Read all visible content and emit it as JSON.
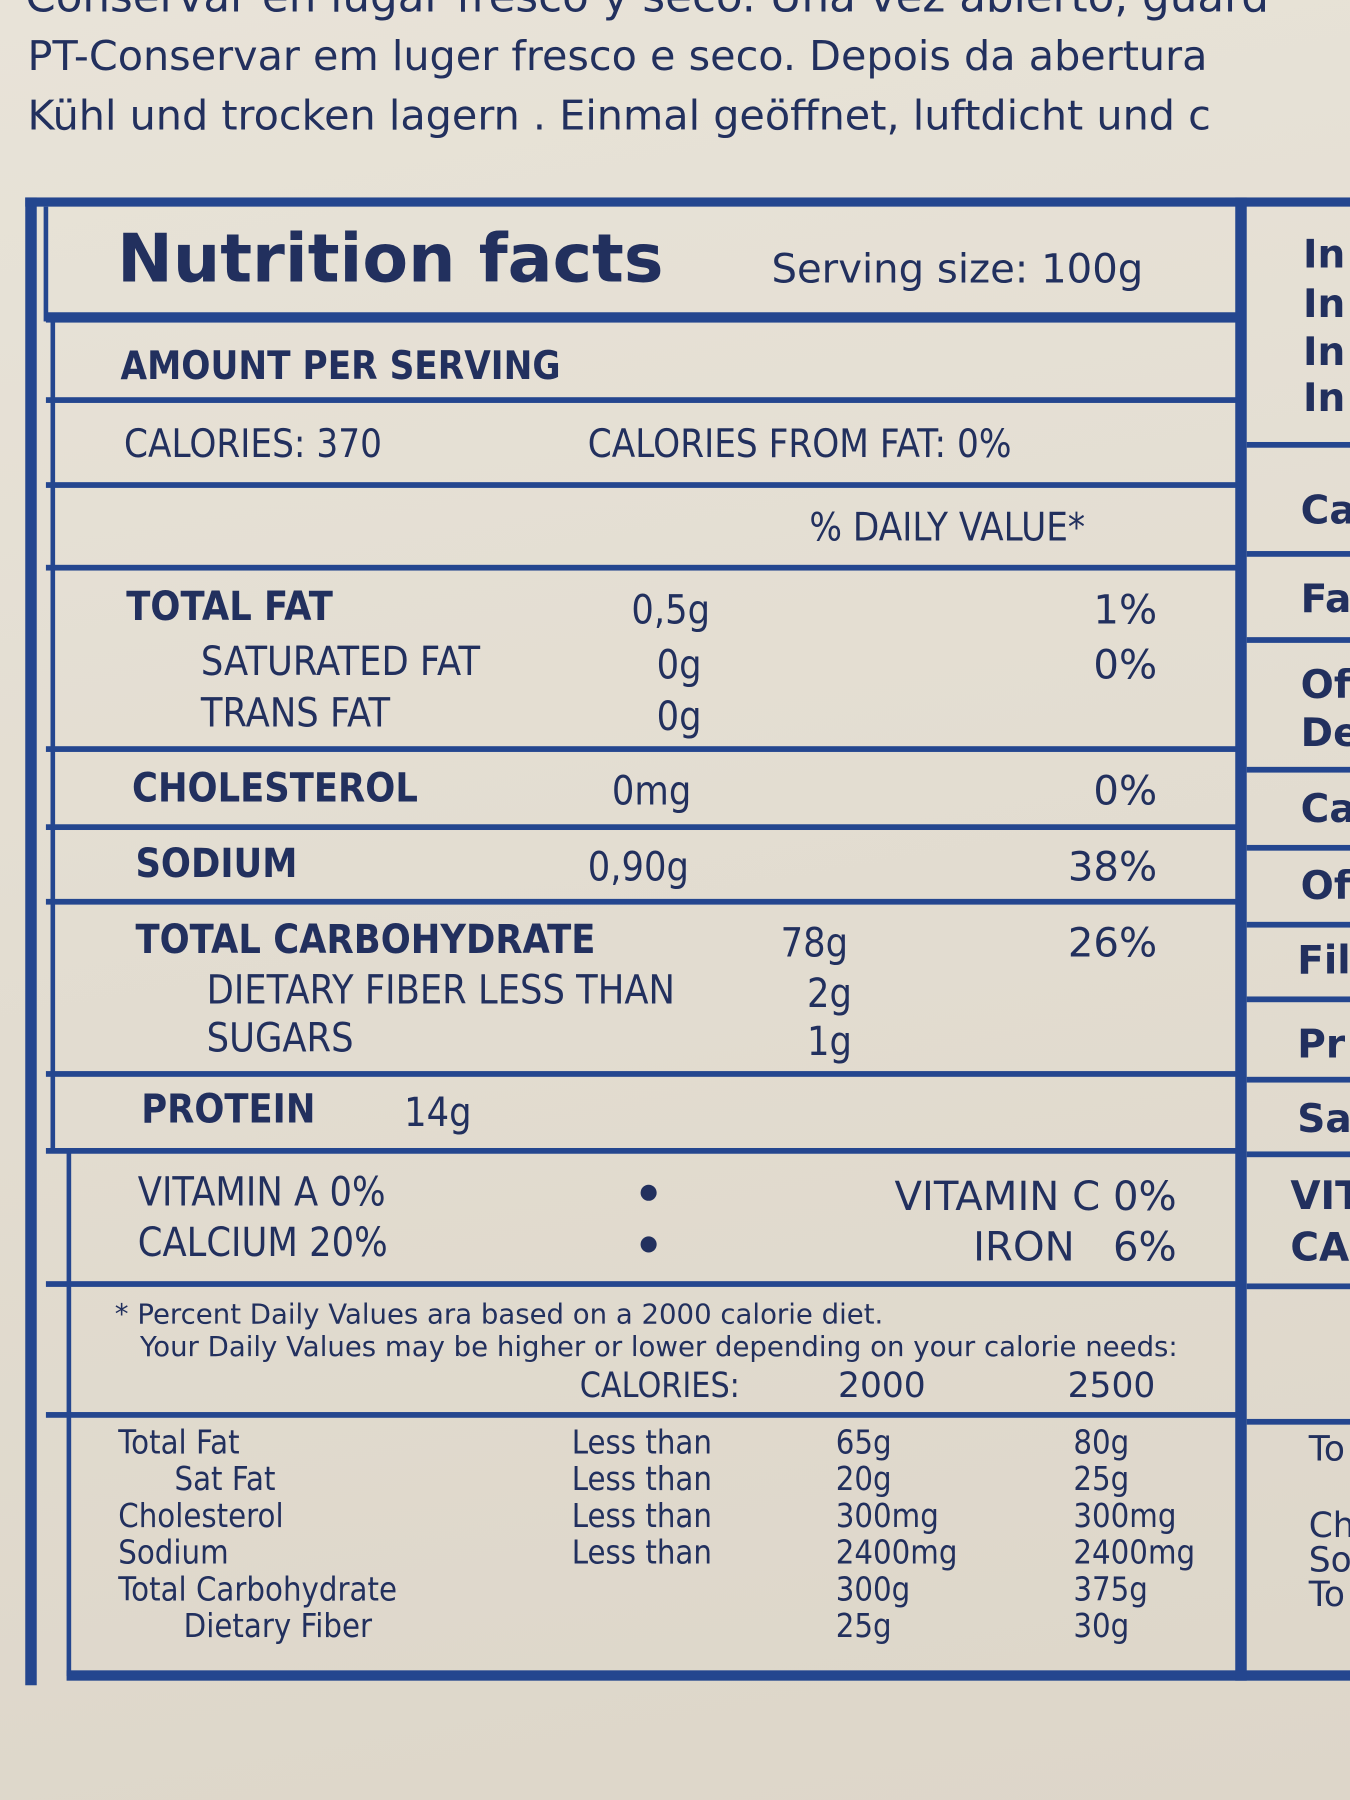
{
  "header_text": [
    "Conservar en lugar fresco y seco. Una vez abierto, guard",
    "PT-Conservar em luger fresco e seco. Depois da abertura",
    "Kühl und trocken lagern . Einmal geöffnet, luftdicht und c"
  ],
  "label": {
    "title": "Nutrition facts",
    "serving_size": "Serving size: 100g",
    "amount_per_serving": "AMOUNT PER SERVING",
    "calories": "CALORIES: 370",
    "calories_from_fat": "CALORIES FROM FAT: 0%",
    "daily_value_header": "% DAILY VALUE*",
    "nutrients": [
      {
        "name": "TOTAL FAT",
        "amount": "0,5g",
        "dv": "1%"
      },
      {
        "name": "SATURATED FAT",
        "amount": "0g",
        "dv": "0%"
      },
      {
        "name": "TRANS FAT",
        "amount": "0g"
      },
      {
        "name": "CHOLESTEROL",
        "amount": "0mg",
        "dv": "0%"
      },
      {
        "name": "SODIUM",
        "amount": "0,90g",
        "dv": "38%"
      },
      {
        "name": "TOTAL CARBOHYDRATE",
        "amount": "78g",
        "dv": "26%"
      },
      {
        "name": "DIETARY FIBER LESS THAN",
        "amount": "2g"
      },
      {
        "name": "SUGARS",
        "amount": "1g"
      },
      {
        "name": "PROTEIN",
        "amount": "14g"
      }
    ],
    "vitamins": [
      "VITAMIN A 0%",
      "VITAMIN C 0%",
      "CALCIUM 20%",
      "IRON   6%"
    ],
    "footnote": [
      "* Percent Daily Values ara based on a 2000 calorie diet.",
      "Your Daily Values may be higher or lower depending on your calorie needs:"
    ],
    "table": {
      "header": [
        "CALORIES:",
        "2000",
        "2500"
      ],
      "rows": [
        {
          "name": "Total Fat",
          "qualifier": "Less than",
          "v2000": "65g",
          "v2500": "80g"
        },
        {
          "name": "Sat Fat",
          "qualifier": "Less than",
          "v2000": "20g",
          "v2500": "25g"
        },
        {
          "name": "Cholesterol",
          "qualifier": "Less than",
          "v2000": "300mg",
          "v2500": "300mg"
        },
        {
          "name": "Sodium",
          "qualifier": "Less than",
          "v2000": "2400mg",
          "v2500": "2400mg"
        },
        {
          "name": "Total Carbohydrate",
          "v2000": "300g",
          "v2500": "375g"
        },
        {
          "name": "Dietary Fiber",
          "v2000": "25g",
          "v2500": "30g"
        }
      ]
    }
  },
  "side_panel": [
    "In",
    "In",
    "In",
    "In",
    "Ca",
    "Fa",
    "Of",
    "De",
    "Ca",
    "Of",
    "Fil",
    "Pr",
    "Sa",
    "VIT",
    "CA",
    "To",
    "Ch",
    "So",
    "To"
  ]
}
